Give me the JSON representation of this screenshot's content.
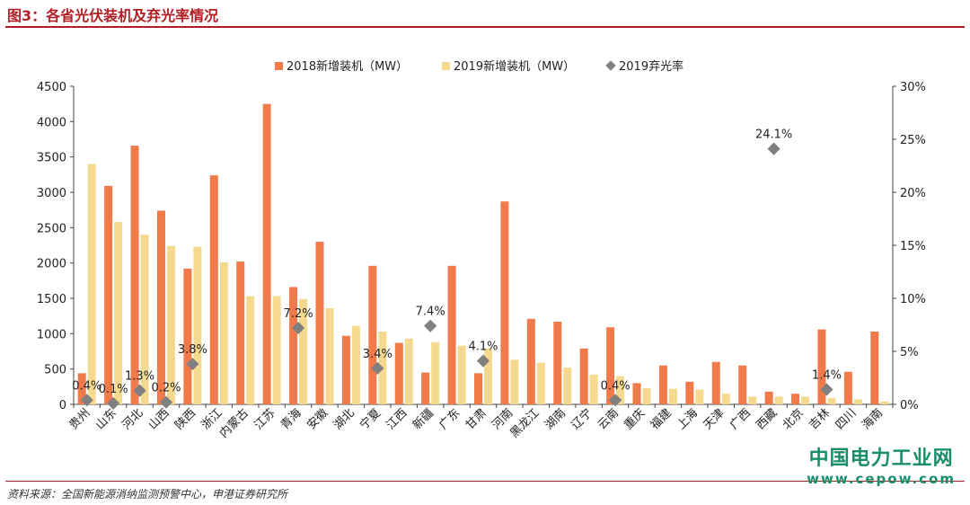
{
  "figure": {
    "title": "图3：各省光伏装机及弃光率情况",
    "source": "资料来源：全国新能源消纳监测预警中心，申港证券研究所",
    "watermark_line1": "中国电力工业网",
    "watermark_line2": "www.cepow.com"
  },
  "chart_data": {
    "type": "bar",
    "categories": [
      "贵州",
      "山东",
      "河北",
      "山西",
      "陕西",
      "浙江",
      "内蒙古",
      "江苏",
      "青海",
      "安徽",
      "湖北",
      "宁夏",
      "江西",
      "新疆",
      "广东",
      "甘肃",
      "河南",
      "黑龙江",
      "湖南",
      "辽宁",
      "云南",
      "重庆",
      "福建",
      "上海",
      "天津",
      "广西",
      "西藏",
      "北京",
      "吉林",
      "四川",
      "海南"
    ],
    "series": [
      {
        "name": "2018新增装机（MW）",
        "kind": "bar",
        "axis": "left",
        "color": "#f07a4a",
        "values": [
          440,
          3090,
          3660,
          2740,
          1920,
          3240,
          2020,
          4250,
          1660,
          2300,
          970,
          1960,
          870,
          450,
          1960,
          440,
          2870,
          1210,
          1170,
          790,
          1090,
          300,
          550,
          320,
          600,
          550,
          180,
          150,
          1060,
          460,
          1030
        ]
      },
      {
        "name": "2019新增装机（MW）",
        "kind": "bar",
        "axis": "left",
        "color": "#f5d98e",
        "values": [
          3400,
          2580,
          2400,
          2240,
          2230,
          2010,
          1530,
          1530,
          1490,
          1360,
          1110,
          1030,
          930,
          880,
          830,
          790,
          630,
          590,
          520,
          420,
          400,
          230,
          220,
          210,
          150,
          110,
          110,
          110,
          90,
          70,
          40
        ]
      },
      {
        "name": "2019弃光率",
        "kind": "scatter",
        "axis": "right",
        "color": "#808080",
        "values": [
          0.4,
          0.1,
          1.3,
          0.2,
          3.8,
          null,
          null,
          null,
          7.2,
          null,
          null,
          3.4,
          null,
          7.4,
          null,
          4.1,
          null,
          null,
          null,
          null,
          0.4,
          null,
          null,
          null,
          null,
          null,
          24.1,
          null,
          1.4,
          null,
          null
        ],
        "labels": [
          "0.4%",
          "0.1%",
          "1.3%",
          "0.2%",
          "3.8%",
          "",
          "",
          "",
          "7.2%",
          "",
          "",
          "3.4%",
          "",
          "7.4%",
          "",
          "4.1%",
          "",
          "",
          "",
          "",
          "0.4%",
          "",
          "",
          "",
          "",
          "",
          "24.1%",
          "",
          "1.4%",
          "",
          ""
        ]
      }
    ],
    "y_left": {
      "min": 0,
      "max": 4500,
      "step": 500,
      "ticks": [
        "0",
        "500",
        "1000",
        "1500",
        "2000",
        "2500",
        "3000",
        "3500",
        "4000",
        "4500"
      ]
    },
    "y_right": {
      "min": 0,
      "max": 30,
      "step": 5,
      "ticks": [
        "0%",
        "5%",
        "10%",
        "15%",
        "20%",
        "25%",
        "30%"
      ]
    },
    "legend_position": "top-center",
    "grid": false
  }
}
